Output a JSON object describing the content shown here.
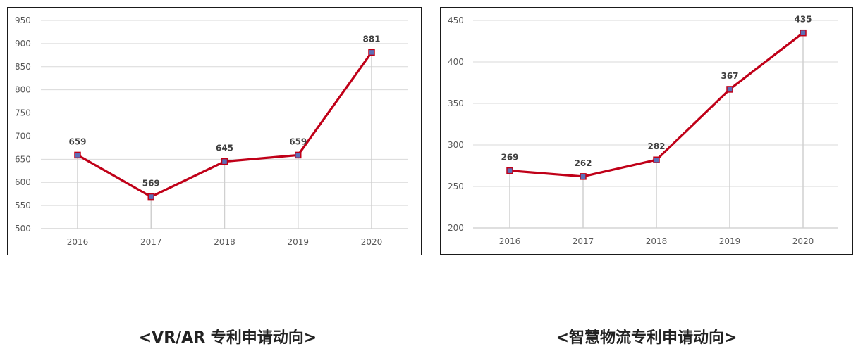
{
  "chart_data": [
    {
      "type": "line",
      "categories": [
        "2016",
        "2017",
        "2018",
        "2019",
        "2020"
      ],
      "values": [
        659,
        569,
        645,
        659,
        881
      ],
      "ylim": [
        500,
        950
      ],
      "yticks": [
        500,
        550,
        600,
        650,
        700,
        750,
        800,
        850,
        900,
        950
      ],
      "grid": true,
      "line_color": "#C00018",
      "marker_color": "#5B6FB8",
      "caption": "<VR/AR 专利申请动向>"
    },
    {
      "type": "line",
      "categories": [
        "2016",
        "2017",
        "2018",
        "2019",
        "2020"
      ],
      "values": [
        269,
        262,
        282,
        367,
        435
      ],
      "ylim": [
        200,
        450
      ],
      "yticks": [
        200,
        250,
        300,
        350,
        400,
        450
      ],
      "grid": true,
      "line_color": "#C00018",
      "marker_color": "#5B6FB8",
      "caption": "<智慧物流专利申请动向>"
    }
  ]
}
